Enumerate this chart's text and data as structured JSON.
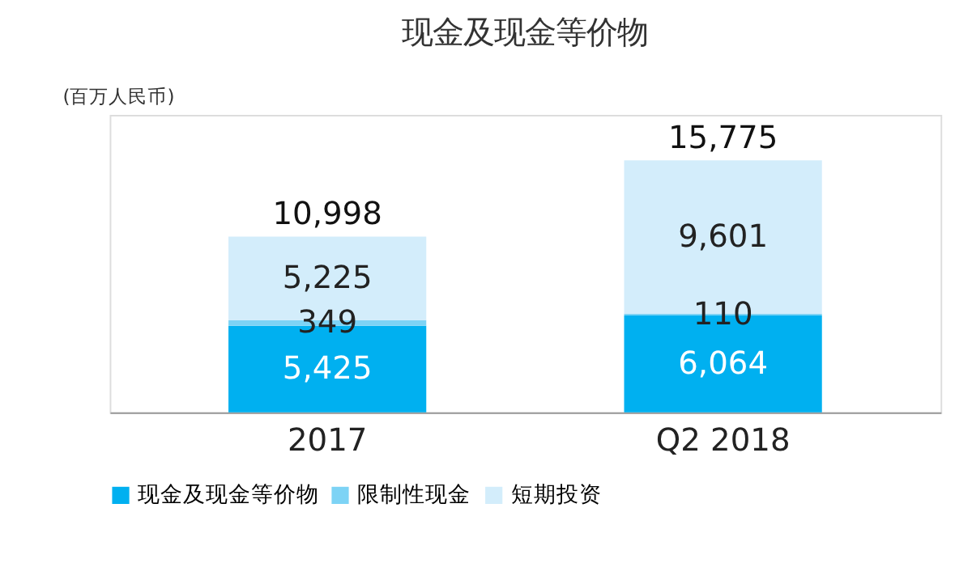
{
  "chart_data": {
    "type": "bar",
    "title": "现金及现金等价物",
    "ylabel": "(百万人民币)",
    "categories": [
      "2017",
      "Q2 2018"
    ],
    "stacked": true,
    "legend": "bottom",
    "series": [
      {
        "name": "现金及现金等价物",
        "color": "#00b0f0",
        "values": [
          5425,
          6064
        ],
        "value_labels": [
          "5,425",
          "6,064"
        ]
      },
      {
        "name": "限制性现金",
        "color": "#7dd3f5",
        "values": [
          349,
          110
        ],
        "value_labels": [
          "349",
          "110"
        ]
      },
      {
        "name": "短期投资",
        "color": "#d3edfb",
        "values": [
          5225,
          9601
        ],
        "value_labels": [
          "5,225",
          "9,601"
        ]
      }
    ],
    "totals": [
      "10,998",
      "15,775"
    ]
  }
}
